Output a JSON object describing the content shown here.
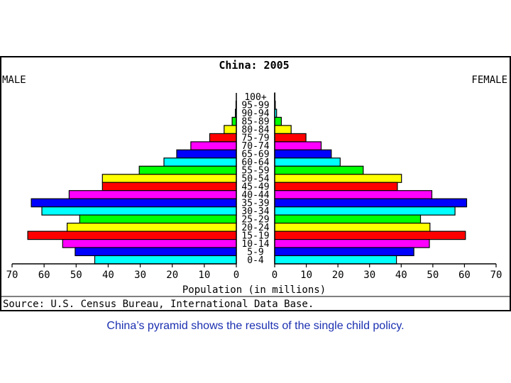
{
  "chart_data": {
    "type": "bar",
    "title": "China: 2005",
    "left_label": "MALE",
    "right_label": "FEMALE",
    "xlabel": "Population (in millions)",
    "source": "Source: U.S. Census Bureau, International Data Base.",
    "xlim": [
      0,
      70
    ],
    "x_ticks": [
      70,
      60,
      50,
      40,
      30,
      20,
      10,
      0
    ],
    "grid": false,
    "categories": [
      "100+",
      "95-99",
      "90-94",
      "85-89",
      "80-84",
      "75-79",
      "70-74",
      "65-69",
      "60-64",
      "55-59",
      "50-54",
      "45-49",
      "40-44",
      "35-39",
      "30-34",
      "25-29",
      "20-24",
      "15-19",
      "10-14",
      "5-9",
      "0-4"
    ],
    "series": [
      {
        "name": "MALE",
        "values": [
          0,
          0.1,
          0.3,
          1.3,
          3.8,
          8.3,
          14.2,
          18.6,
          22.6,
          30.3,
          41.8,
          41.8,
          52.2,
          64.0,
          60.7,
          48.9,
          52.8,
          65.1,
          54.2,
          50.3,
          44.2
        ]
      },
      {
        "name": "FEMALE",
        "values": [
          0.1,
          0.2,
          0.6,
          2.1,
          5.2,
          9.9,
          14.7,
          17.9,
          20.7,
          28.0,
          40.1,
          38.8,
          49.7,
          60.7,
          57.0,
          46.1,
          49.1,
          60.3,
          48.9,
          44.0,
          38.5
        ]
      }
    ],
    "bar_colors": [
      "#ff00ff",
      "#0000ff",
      "#00ffff",
      "#00ff00",
      "#ffff00",
      "#ff0000",
      "#ff00ff",
      "#0000ff",
      "#00ffff",
      "#00ff00",
      "#ffff00",
      "#ff0000",
      "#ff00ff",
      "#0000ff",
      "#00ffff",
      "#00ff00",
      "#ffff00",
      "#ff0000",
      "#ff00ff",
      "#0000ff",
      "#00ffff"
    ]
  },
  "caption": "China’s pyramid shows the results of the single child policy."
}
